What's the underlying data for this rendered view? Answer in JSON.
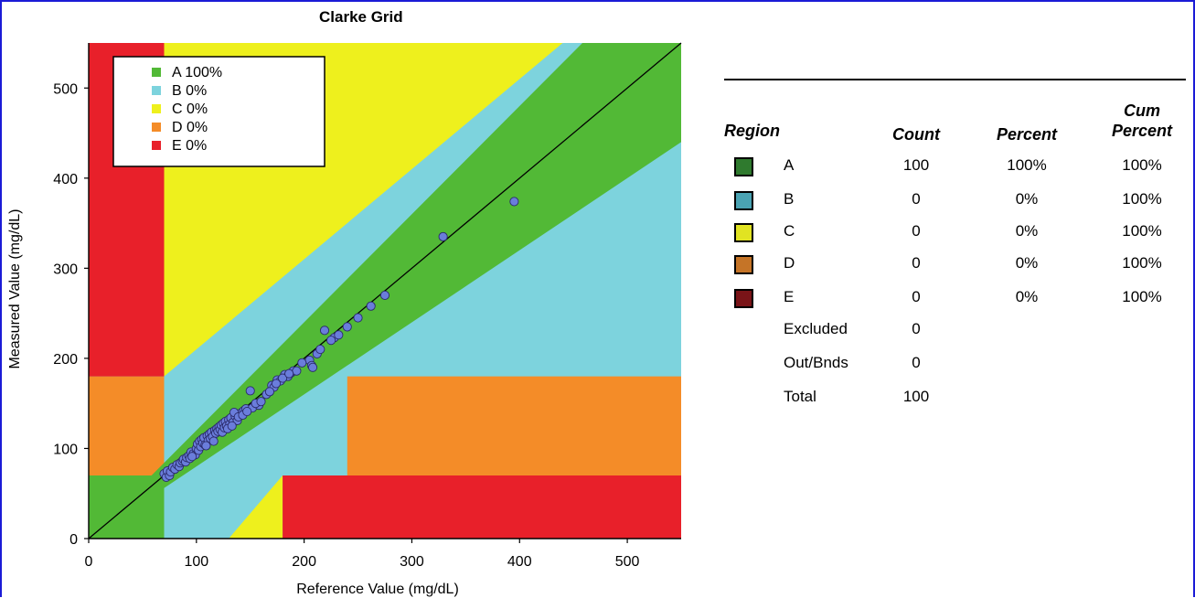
{
  "chart_data": {
    "type": "scatter",
    "title": "Clarke Grid",
    "xlabel": "Reference Value (mg/dL)",
    "ylabel": "Measured Value (mg/dL)",
    "xlim": [
      0,
      550
    ],
    "ylim": [
      0,
      550
    ],
    "xticks": [
      0,
      100,
      200,
      300,
      400,
      500
    ],
    "yticks": [
      0,
      100,
      200,
      300,
      400,
      500
    ],
    "legend": {
      "placement": "top-left",
      "entries": [
        {
          "label": "A 100%",
          "color": "#52b936"
        },
        {
          "label": "B 0%",
          "color": "#7dd3dd"
        },
        {
          "label": "C 0%",
          "color": "#eef01d"
        },
        {
          "label": "D 0%",
          "color": "#f48c28"
        },
        {
          "label": "E 0%",
          "color": "#e8202a"
        }
      ]
    },
    "zone_colors": {
      "A": "#52b936",
      "B": "#7dd3dd",
      "C": "#eef01d",
      "D": "#f48c28",
      "E": "#e8202a"
    },
    "identity_line": true,
    "series": [
      {
        "color": "#6a7ddb",
        "points": [
          [
            70,
            72
          ],
          [
            72,
            68
          ],
          [
            73,
            75
          ],
          [
            75,
            70
          ],
          [
            76,
            74
          ],
          [
            78,
            79
          ],
          [
            80,
            77
          ],
          [
            82,
            82
          ],
          [
            84,
            80
          ],
          [
            85,
            84
          ],
          [
            87,
            86
          ],
          [
            88,
            88
          ],
          [
            90,
            85
          ],
          [
            91,
            90
          ],
          [
            93,
            92
          ],
          [
            94,
            89
          ],
          [
            95,
            96
          ],
          [
            97,
            94
          ],
          [
            99,
            93
          ],
          [
            100,
            100
          ],
          [
            101,
            105
          ],
          [
            102,
            98
          ],
          [
            103,
            108
          ],
          [
            104,
            102
          ],
          [
            105,
            110
          ],
          [
            106,
            106
          ],
          [
            107,
            112
          ],
          [
            108,
            104
          ],
          [
            110,
            114
          ],
          [
            111,
            109
          ],
          [
            112,
            116
          ],
          [
            113,
            111
          ],
          [
            114,
            118
          ],
          [
            115,
            113
          ],
          [
            117,
            120
          ],
          [
            118,
            117
          ],
          [
            119,
            122
          ],
          [
            120,
            119
          ],
          [
            121,
            124
          ],
          [
            122,
            121
          ],
          [
            123,
            126
          ],
          [
            124,
            118
          ],
          [
            125,
            128
          ],
          [
            126,
            123
          ],
          [
            127,
            130
          ],
          [
            128,
            125
          ],
          [
            130,
            132
          ],
          [
            131,
            127
          ],
          [
            132,
            134
          ],
          [
            134,
            129
          ],
          [
            136,
            136
          ],
          [
            138,
            131
          ],
          [
            140,
            138
          ],
          [
            142,
            140
          ],
          [
            144,
            142
          ],
          [
            146,
            144
          ],
          [
            150,
            164
          ],
          [
            152,
            145
          ],
          [
            158,
            148
          ],
          [
            170,
            170
          ],
          [
            172,
            168
          ],
          [
            175,
            176
          ],
          [
            178,
            175
          ],
          [
            182,
            182
          ],
          [
            185,
            180
          ],
          [
            188,
            184
          ],
          [
            190,
            186
          ],
          [
            193,
            186
          ],
          [
            205,
            198
          ],
          [
            207,
            192
          ],
          [
            208,
            190
          ],
          [
            219,
            231
          ],
          [
            228,
            223
          ],
          [
            232,
            226
          ],
          [
            329,
            335
          ],
          [
            395,
            374
          ],
          [
            96,
            91
          ],
          [
            109,
            103
          ],
          [
            116,
            108
          ],
          [
            129,
            122
          ],
          [
            133,
            125
          ],
          [
            135,
            140
          ],
          [
            139,
            135
          ],
          [
            143,
            137
          ],
          [
            147,
            141
          ],
          [
            155,
            150
          ],
          [
            160,
            152
          ],
          [
            165,
            160
          ],
          [
            168,
            163
          ],
          [
            174,
            172
          ],
          [
            180,
            178
          ],
          [
            186,
            183
          ],
          [
            198,
            195
          ],
          [
            212,
            205
          ],
          [
            215,
            210
          ],
          [
            225,
            220
          ],
          [
            240,
            235
          ],
          [
            250,
            245
          ],
          [
            262,
            258
          ],
          [
            275,
            270
          ]
        ]
      }
    ]
  },
  "table": {
    "headers": {
      "region": "Region",
      "count": "Count",
      "percent": "Percent",
      "cum_line1": "Cum",
      "cum_line2": "Percent"
    },
    "rows": [
      {
        "region": "A",
        "count": "100",
        "percent": "100%",
        "cum": "100%",
        "swatch": "#2f7a2e"
      },
      {
        "region": "B",
        "count": "0",
        "percent": "0%",
        "cum": "100%",
        "swatch": "#4aa3b3"
      },
      {
        "region": "C",
        "count": "0",
        "percent": "0%",
        "cum": "100%",
        "swatch": "#e1e322"
      },
      {
        "region": "D",
        "count": "0",
        "percent": "0%",
        "cum": "100%",
        "swatch": "#c57427"
      },
      {
        "region": "E",
        "count": "0",
        "percent": "0%",
        "cum": "100%",
        "swatch": "#7a1418"
      }
    ],
    "extra": [
      {
        "label": "Excluded",
        "count": "0"
      },
      {
        "label": "Out/Bnds",
        "count": "0"
      },
      {
        "label": "Total",
        "count": "100"
      }
    ]
  }
}
